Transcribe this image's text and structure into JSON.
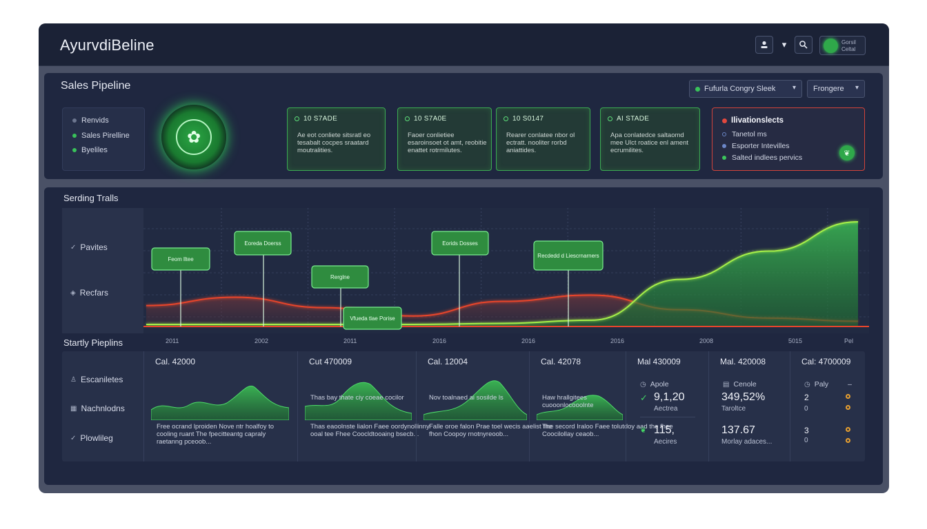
{
  "app": {
    "title": "AyurvdiBeline"
  },
  "topbar": {
    "user_icon": "person-icon",
    "chevron": "▾",
    "search_icon": "search-icon",
    "profile_line1": "Gorsil",
    "profile_line2": "Celtal"
  },
  "pipeline": {
    "title": "Sales Pipeline",
    "filter_label": "Fufurla Congry Sleek",
    "range_label": "Frongere",
    "nav": [
      "Renvids",
      "Sales Pirelline",
      "Byeliles"
    ],
    "stages": [
      {
        "id": "10 S7ADE",
        "body": "Ae eot conliete sitsratl eo tesabalt cocpes sraatard moutralities."
      },
      {
        "id": "10 S7A0E",
        "body": "Faoer conlietiee esaroinsoet ot amt, reobitie enattet rotrmilutes."
      },
      {
        "id": "10 S0147",
        "body": "Rearer conlatee nbor ol ectratt. nooliter rorbd aniattides."
      },
      {
        "id": "AI STADE",
        "body": "Apa conlatedce saltaomd mee Ulct roatice enl ament ecrumilites."
      }
    ],
    "alert": {
      "title": "Ilivationslects",
      "items": [
        "Tanetol ms",
        "Esporter Intevilles",
        "Salted indlees pervics"
      ],
      "item_colors": [
        "#6c87c8",
        "#6c87c8",
        "#3cc55c"
      ]
    },
    "colors": {
      "accent": "#3cc55c",
      "alert": "#d2443a",
      "line_warn": "#e8452c"
    }
  },
  "trends": {
    "title": "Serding Tralls",
    "labels": [
      "Pavites",
      "Recfars"
    ],
    "callouts": [
      "Feom lltee",
      "Eoreda Doerss",
      "Rerglne",
      "Vfueda tlae Porise",
      "Eorids Dosses",
      "Recdedd d Liescrnarners"
    ],
    "x_ticks": [
      "2011",
      "2002",
      "2011",
      "2016",
      "2016",
      "2016",
      "2008",
      "5015",
      "Pel"
    ]
  },
  "chart_data": {
    "type": "area",
    "x": [
      "2011",
      "2002",
      "2011",
      "2016",
      "2016",
      "2016",
      "2008",
      "5015",
      "Pel"
    ],
    "series": [
      {
        "values": [
          0.2,
          0.28,
          0.18,
          0.1,
          0.24,
          0.3,
          0.16,
          0.08,
          0.05
        ]
      },
      {
        "values": [
          0.02,
          0.02,
          0.02,
          0.02,
          0.03,
          0.06,
          0.45,
          0.72,
          1.0
        ]
      }
    ],
    "grid": true
  },
  "summary": {
    "title": "Startly Pieplins",
    "labels": [
      "Escaniletes",
      "Nachnlodns",
      "Plowlileg"
    ],
    "mini_cols": [
      {
        "title": "Cal. 42000",
        "caption": "",
        "desc": "Free ocrand lproiden Nove ntr hoalfoy to cooling ruant The fpecitteantg capraly raetanng pceoob..."
      },
      {
        "title": "Cut 470009",
        "caption": "Thas bay thate ciy coeae cocilor",
        "desc": "Thas eaoolnste lialon Faee oordynollinny ooal tee Fhee Coocldtooaing bsecb..."
      },
      {
        "title": "Cal. 12004",
        "caption": "Nov toalnaed ai sosilde ls",
        "desc": "Falle oroe falon Prae toel wecis aaelist fhe fhon Coopoy rnotnyreoob..."
      },
      {
        "title": "Cal. 42078",
        "caption": "Haw hrallgitees cuooonlocooolnte",
        "desc": "The secord Iraloo Faee tolutdoy aad the fhee Coocilollay ceaob..."
      }
    ],
    "metric_cols": [
      {
        "title": "Mal 430009",
        "sub": "Apole",
        "v1": "9,1,20",
        "v1sub": "Aectrea",
        "v2": "115,",
        "v2sub": "Aecires"
      },
      {
        "title": "Mal. 420008",
        "sub": "Cenole",
        "v1": "349,52%",
        "v1sub": "Taroltce",
        "v2": "137.67",
        "v2sub": "Morlay adaces..."
      },
      {
        "title": "Cal: 4700009",
        "sub": "Paly",
        "v1": "2",
        "v1sub": "0",
        "v2": "3",
        "v2sub": "0"
      }
    ]
  }
}
